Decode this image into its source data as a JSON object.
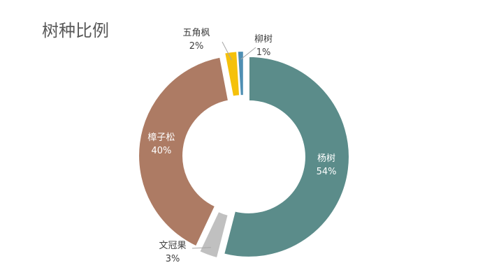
{
  "chart_data": {
    "type": "pie",
    "title": "树种比例",
    "donut": true,
    "slices": [
      {
        "name": "杨树",
        "value": 54,
        "label": "54%",
        "color": "#5b8c8a"
      },
      {
        "name": "文冠果",
        "value": 3,
        "label": "3%",
        "color": "#c0c0c0"
      },
      {
        "name": "樟子松",
        "value": 40,
        "label": "40%",
        "color": "#ad7b64"
      },
      {
        "name": "五角枫",
        "value": 2,
        "label": "2%",
        "color": "#f5c10b"
      },
      {
        "name": "柳树",
        "value": 1,
        "label": "1%",
        "color": "#4f8fb3"
      }
    ]
  }
}
